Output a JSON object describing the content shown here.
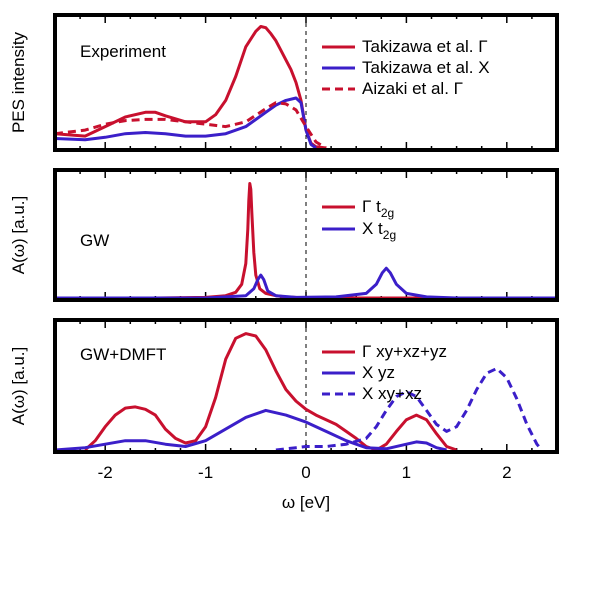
{
  "chart_data": [
    {
      "type": "line",
      "panel_label": "Experiment",
      "ylabel": "PES intensity",
      "xlim": [
        -2.5,
        2.5
      ],
      "ylim": [
        0,
        1.1
      ],
      "zero_line": true,
      "legend_position": "top-right",
      "series": [
        {
          "name": "Takizawa et al. Γ",
          "color": "#c8102e",
          "dash": "solid",
          "x": [
            -2.5,
            -2.2,
            -2.0,
            -1.8,
            -1.6,
            -1.5,
            -1.4,
            -1.2,
            -1.0,
            -0.9,
            -0.8,
            -0.7,
            -0.6,
            -0.5,
            -0.45,
            -0.4,
            -0.35,
            -0.3,
            -0.25,
            -0.2,
            -0.15,
            -0.1,
            -0.05,
            0.0,
            0.05,
            0.1,
            0.2
          ],
          "y": [
            0.12,
            0.1,
            0.18,
            0.26,
            0.3,
            0.3,
            0.27,
            0.22,
            0.22,
            0.28,
            0.4,
            0.6,
            0.85,
            0.98,
            1.02,
            1.01,
            0.96,
            0.9,
            0.82,
            0.74,
            0.66,
            0.55,
            0.4,
            0.15,
            0.04,
            0.01,
            0.0
          ]
        },
        {
          "name": "Takizawa et al. X",
          "color": "#3b1fc9",
          "dash": "solid",
          "x": [
            -2.5,
            -2.2,
            -2.0,
            -1.8,
            -1.6,
            -1.4,
            -1.2,
            -1.0,
            -0.8,
            -0.6,
            -0.4,
            -0.3,
            -0.2,
            -0.1,
            -0.05,
            0.0,
            0.05,
            0.1
          ],
          "y": [
            0.08,
            0.07,
            0.09,
            0.12,
            0.13,
            0.12,
            0.1,
            0.1,
            0.12,
            0.18,
            0.3,
            0.36,
            0.4,
            0.42,
            0.38,
            0.15,
            0.03,
            0.0
          ]
        },
        {
          "name": "Aizaki et al. Γ",
          "color": "#c8102e",
          "dash": "dashed",
          "x": [
            -2.5,
            -2.2,
            -2.0,
            -1.8,
            -1.6,
            -1.4,
            -1.2,
            -1.0,
            -0.8,
            -0.6,
            -0.4,
            -0.3,
            -0.2,
            -0.1,
            0.0,
            0.1,
            0.2
          ],
          "y": [
            0.12,
            0.15,
            0.2,
            0.23,
            0.24,
            0.24,
            0.22,
            0.2,
            0.18,
            0.22,
            0.33,
            0.38,
            0.37,
            0.32,
            0.18,
            0.05,
            0.0
          ]
        }
      ]
    },
    {
      "type": "line",
      "panel_label": "GW",
      "ylabel": "A(ω) [a.u.]",
      "xlim": [
        -2.5,
        2.5
      ],
      "ylim": [
        0,
        1.1
      ],
      "zero_line": true,
      "legend_position": "top-right",
      "series": [
        {
          "name": "Γ t",
          "name_sub": "2g",
          "color": "#c8102e",
          "dash": "solid",
          "x": [
            -2.5,
            -1.5,
            -1.0,
            -0.8,
            -0.7,
            -0.64,
            -0.6,
            -0.58,
            -0.57,
            -0.56,
            -0.55,
            -0.54,
            -0.52,
            -0.5,
            -0.46,
            -0.4,
            -0.3,
            -0.2,
            0.0,
            0.5,
            1.0,
            2.5
          ],
          "y": [
            0.0,
            0.0,
            0.005,
            0.02,
            0.05,
            0.12,
            0.3,
            0.6,
            0.85,
            1.0,
            0.95,
            0.75,
            0.4,
            0.2,
            0.08,
            0.04,
            0.02,
            0.01,
            0.0,
            0.0,
            0.0,
            0.0
          ]
        },
        {
          "name": "X t",
          "name_sub": "2g",
          "color": "#3b1fc9",
          "dash": "solid",
          "x": [
            -2.5,
            -1.0,
            -0.6,
            -0.52,
            -0.48,
            -0.45,
            -0.42,
            -0.38,
            -0.3,
            -0.1,
            0.3,
            0.6,
            0.7,
            0.76,
            0.8,
            0.84,
            0.9,
            1.0,
            1.2,
            1.5,
            2.5
          ],
          "y": [
            0.0,
            0.0,
            0.02,
            0.08,
            0.16,
            0.2,
            0.16,
            0.06,
            0.02,
            0.005,
            0.01,
            0.04,
            0.12,
            0.22,
            0.26,
            0.22,
            0.12,
            0.04,
            0.01,
            0.0,
            0.0
          ]
        }
      ]
    },
    {
      "type": "line",
      "panel_label": "GW+DMFT",
      "ylabel": "A(ω) [a.u.]",
      "xlabel": "ω [eV]",
      "xticks": [
        -2,
        -1,
        0,
        1,
        2
      ],
      "xlim": [
        -2.5,
        2.5
      ],
      "ylim": [
        0,
        1.1
      ],
      "zero_line": true,
      "legend_position": "top-right",
      "series": [
        {
          "name": "Γ xy+xz+yz",
          "color": "#c8102e",
          "dash": "solid",
          "x": [
            -2.2,
            -2.1,
            -2.0,
            -1.9,
            -1.8,
            -1.7,
            -1.6,
            -1.5,
            -1.4,
            -1.3,
            -1.2,
            -1.1,
            -1.0,
            -0.9,
            -0.8,
            -0.7,
            -0.6,
            -0.5,
            -0.4,
            -0.3,
            -0.2,
            -0.1,
            0.0,
            0.1,
            0.2,
            0.3,
            0.4,
            0.5,
            0.6,
            0.7,
            0.8,
            0.9,
            1.0,
            1.1,
            1.2,
            1.3,
            1.4,
            1.5
          ],
          "y": [
            0.0,
            0.08,
            0.2,
            0.3,
            0.36,
            0.37,
            0.35,
            0.3,
            0.18,
            0.1,
            0.06,
            0.08,
            0.2,
            0.45,
            0.78,
            0.96,
            1.0,
            0.98,
            0.86,
            0.68,
            0.52,
            0.42,
            0.35,
            0.3,
            0.26,
            0.22,
            0.16,
            0.1,
            0.03,
            0.0,
            0.05,
            0.16,
            0.26,
            0.3,
            0.26,
            0.14,
            0.03,
            0.0
          ]
        },
        {
          "name": "X yz",
          "color": "#3b1fc9",
          "dash": "solid",
          "x": [
            -2.5,
            -2.2,
            -2.0,
            -1.8,
            -1.6,
            -1.4,
            -1.2,
            -1.0,
            -0.8,
            -0.6,
            -0.4,
            -0.2,
            0.0,
            0.2,
            0.4,
            0.6,
            0.8,
            1.0,
            1.1,
            1.2,
            1.3,
            1.4
          ],
          "y": [
            0.0,
            0.02,
            0.05,
            0.08,
            0.08,
            0.05,
            0.03,
            0.08,
            0.18,
            0.28,
            0.34,
            0.3,
            0.24,
            0.16,
            0.08,
            0.02,
            0.01,
            0.05,
            0.07,
            0.06,
            0.02,
            0.0
          ]
        },
        {
          "name": "X xy+xz",
          "color": "#3b1fc9",
          "dash": "dashed",
          "x": [
            -0.3,
            -0.1,
            0.0,
            0.2,
            0.4,
            0.6,
            0.7,
            0.8,
            0.9,
            1.0,
            1.1,
            1.2,
            1.3,
            1.4,
            1.5,
            1.6,
            1.7,
            1.8,
            1.9,
            2.0,
            2.1,
            2.2,
            2.3,
            2.35
          ],
          "y": [
            0.0,
            0.02,
            0.03,
            0.03,
            0.05,
            0.1,
            0.2,
            0.34,
            0.46,
            0.5,
            0.46,
            0.34,
            0.22,
            0.16,
            0.2,
            0.34,
            0.52,
            0.66,
            0.7,
            0.62,
            0.44,
            0.22,
            0.05,
            0.0
          ]
        }
      ]
    }
  ]
}
